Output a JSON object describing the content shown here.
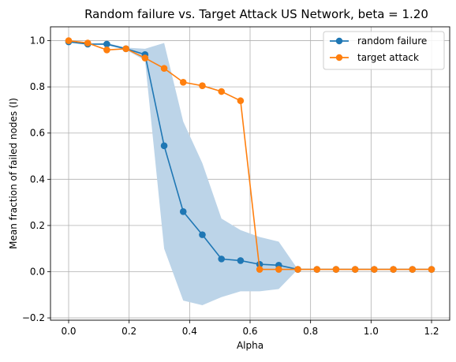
{
  "chart_data": {
    "type": "line",
    "title": "Random failure vs. Target Attack US Network, beta = 1.20",
    "xlabel": "Alpha",
    "ylabel": "Mean fraction of failed nodes (I)",
    "xlim": [
      -0.06,
      1.26
    ],
    "ylim": [
      -0.21,
      1.06
    ],
    "xticks": [
      0.0,
      0.2,
      0.4,
      0.6,
      0.8,
      1.0,
      1.2
    ],
    "xtick_labels": [
      "0.0",
      "0.2",
      "0.4",
      "0.6",
      "0.8",
      "1.0",
      "1.2"
    ],
    "yticks": [
      -0.2,
      0.0,
      0.2,
      0.4,
      0.6,
      0.8,
      1.0
    ],
    "ytick_labels": [
      "−0.2",
      "0.0",
      "0.2",
      "0.4",
      "0.6",
      "0.8",
      "1.0"
    ],
    "grid": true,
    "legend_position": "top-right",
    "x": [
      0.0,
      0.0632,
      0.1263,
      0.1895,
      0.2526,
      0.3158,
      0.3789,
      0.4421,
      0.5053,
      0.5684,
      0.6316,
      0.6947,
      0.7579,
      0.8211,
      0.8842,
      0.9474,
      1.0105,
      1.0737,
      1.1368,
      1.2
    ],
    "series": [
      {
        "name": "random failure",
        "color": "#1f77b4",
        "values": [
          0.995,
          0.985,
          0.985,
          0.965,
          0.94,
          0.545,
          0.26,
          0.16,
          0.055,
          0.048,
          0.032,
          0.028,
          0.01,
          0.01,
          0.01,
          0.01,
          0.01,
          0.01,
          0.01,
          0.01
        ],
        "band_upper": [
          0.995,
          0.985,
          0.99,
          0.97,
          0.965,
          0.99,
          0.65,
          0.47,
          0.23,
          0.18,
          0.15,
          0.13,
          0.01,
          0.01,
          0.01,
          0.01,
          0.01,
          0.01,
          0.01,
          0.01
        ],
        "band_lower": [
          0.995,
          0.985,
          0.98,
          0.96,
          0.915,
          0.1,
          -0.125,
          -0.145,
          -0.11,
          -0.085,
          -0.085,
          -0.075,
          0.01,
          0.01,
          0.01,
          0.01,
          0.01,
          0.01,
          0.01,
          0.01
        ],
        "band_color": "#bcd4e8"
      },
      {
        "name": "target attack",
        "color": "#ff7f0e",
        "values": [
          1.0,
          0.99,
          0.96,
          0.965,
          0.925,
          0.88,
          0.82,
          0.805,
          0.78,
          0.74,
          0.01,
          0.01,
          0.01,
          0.01,
          0.01,
          0.01,
          0.01,
          0.01,
          0.01,
          0.01
        ]
      }
    ]
  }
}
